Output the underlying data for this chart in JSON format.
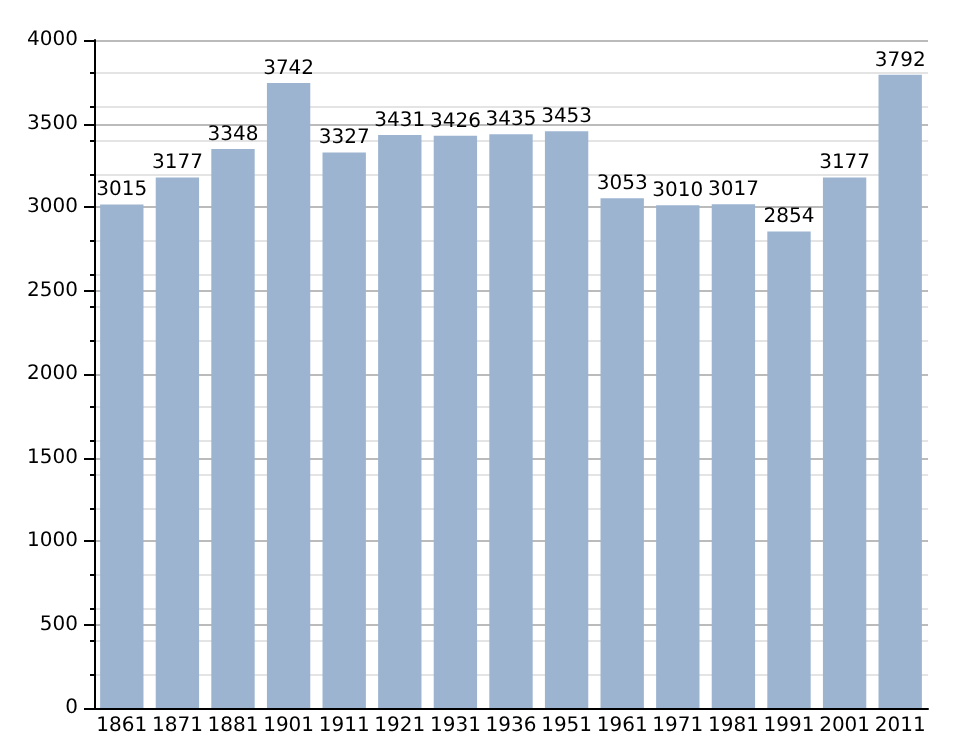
{
  "chart_data": {
    "type": "bar",
    "categories": [
      "1861",
      "1871",
      "1881",
      "1901",
      "1911",
      "1921",
      "1931",
      "1936",
      "1951",
      "1961",
      "1971",
      "1981",
      "1991",
      "2001",
      "2011"
    ],
    "values": [
      3015,
      3177,
      3348,
      3742,
      3327,
      3431,
      3426,
      3435,
      3453,
      3053,
      3010,
      3017,
      2854,
      3177,
      3792
    ],
    "color": "#9db4d0",
    "ylim": [
      0,
      4000
    ],
    "yticks": [
      0,
      500,
      1000,
      1500,
      2000,
      2500,
      3000,
      3500,
      4000
    ],
    "grid": "y",
    "data_labels": true
  }
}
